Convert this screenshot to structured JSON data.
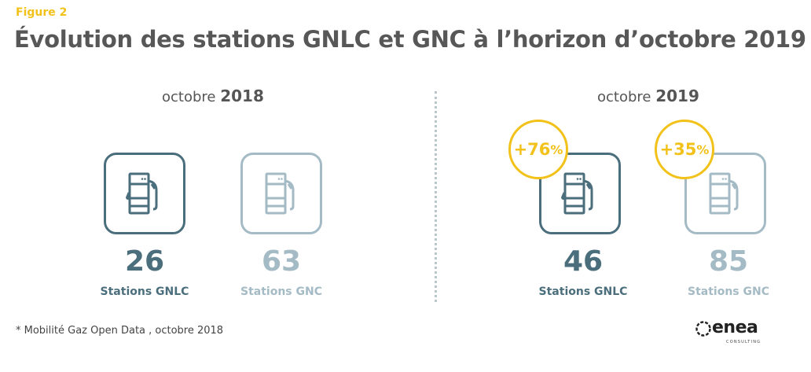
{
  "figure_label": "Figure 2",
  "title": "Évolution des stations GNLC et GNC à l’horizon d’octobre 2019",
  "periods": [
    {
      "month": "octobre",
      "year": "2018",
      "items": [
        {
          "value": "26",
          "label": "Stations GNLC",
          "icon": "fuel-pump-drop-icon"
        },
        {
          "value": "63",
          "label": "Stations GNC",
          "icon": "fuel-pump-icon"
        }
      ]
    },
    {
      "month": "octobre",
      "year": "2019",
      "items": [
        {
          "value": "46",
          "label": "Stations GNLC",
          "icon": "fuel-pump-drop-icon",
          "badge_sign": "+",
          "badge_value": "76",
          "badge_unit": "%"
        },
        {
          "value": "85",
          "label": "Stations GNC",
          "icon": "fuel-pump-icon",
          "badge_sign": "+",
          "badge_value": "35",
          "badge_unit": "%"
        }
      ]
    }
  ],
  "footnote": "* Mobilité Gaz Open Data , octobre 2018",
  "logo": {
    "word": "enea",
    "sub": "CONSULTING"
  },
  "colors": {
    "dark_teal": "#4b6e7d",
    "light_teal": "#a4bbc5",
    "yellow": "#f2c21b",
    "title_gray": "#575757"
  }
}
